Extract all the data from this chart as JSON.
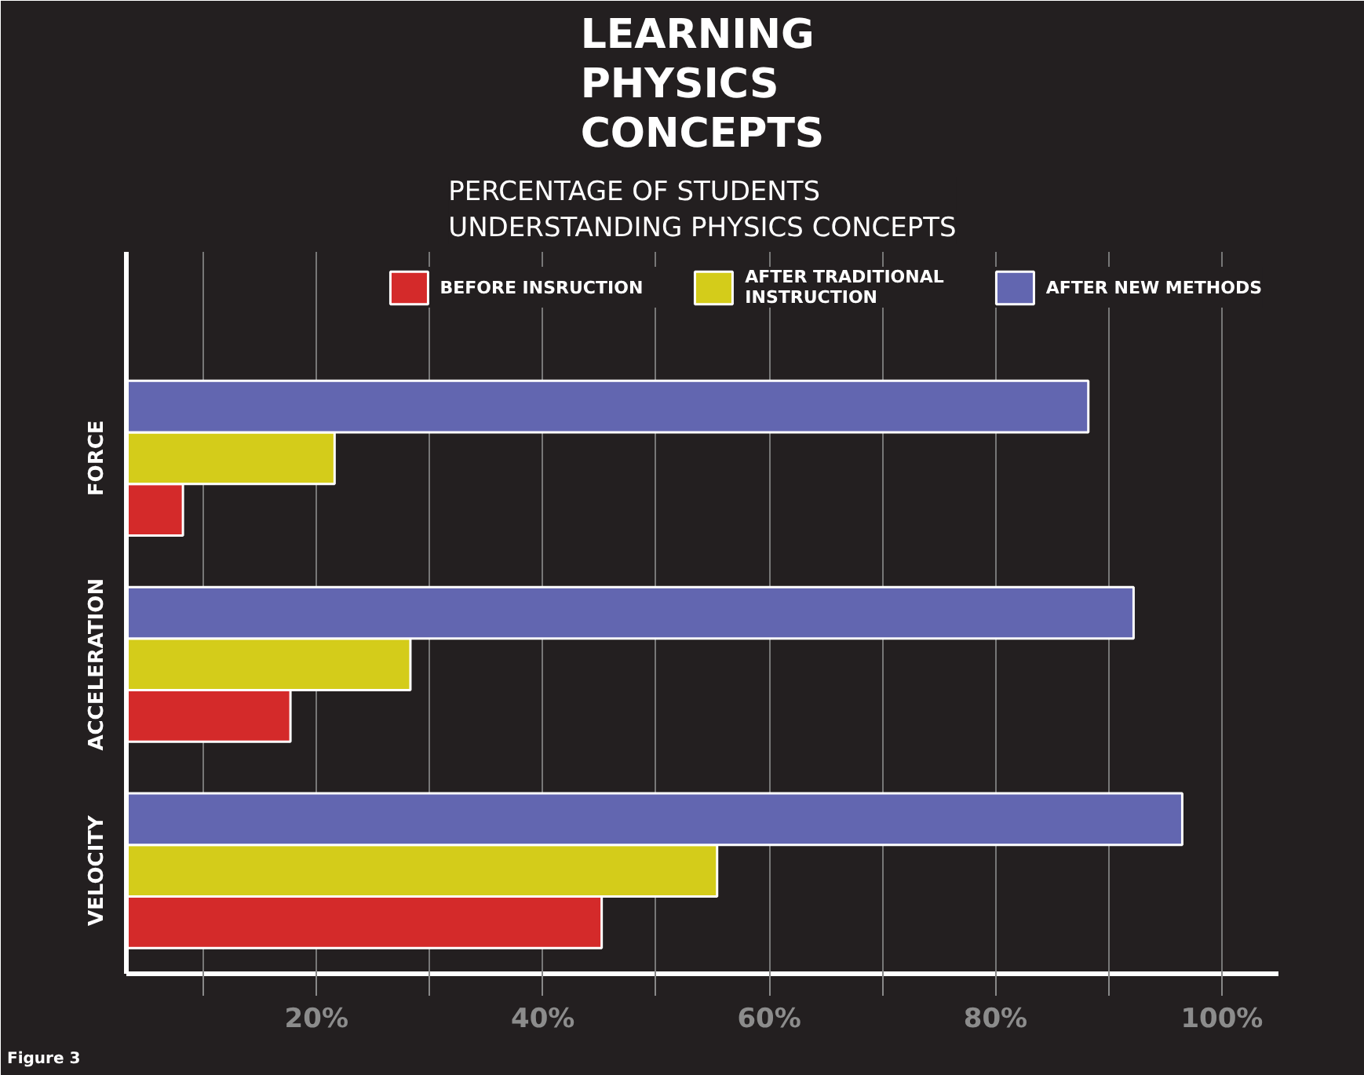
{
  "chart_data": {
    "type": "bar",
    "orientation": "horizontal",
    "title": "LEARNING PHYSICS CONCEPTS",
    "subtitle": "PERCENTAGE  OF STUDENTS UNDERSTANDING PHYSICS CONCEPTS",
    "categories": [
      "FORCE",
      "ACCELERATION",
      "VELOCITY"
    ],
    "series": [
      {
        "name": "BEFORE INSRUCTION",
        "color": "#d42a2a",
        "values": [
          8.2,
          17.7,
          45.2
        ]
      },
      {
        "name": "AFTER TRADITIONAL INSTRUCTION",
        "color": "#d4cc1a",
        "values": [
          21.6,
          28.3,
          55.4
        ]
      },
      {
        "name": "AFTER NEW METHODS",
        "color": "#6266b0",
        "values": [
          88.2,
          92.2,
          96.5
        ]
      }
    ],
    "xlim": [
      3.2,
      105
    ],
    "xticks": [
      {
        "value": 10,
        "label": null
      },
      {
        "value": 20,
        "label": "20%"
      },
      {
        "value": 30,
        "label": null
      },
      {
        "value": 40,
        "label": "40%"
      },
      {
        "value": 50,
        "label": null
      },
      {
        "value": 60,
        "label": "60%"
      },
      {
        "value": 70,
        "label": null
      },
      {
        "value": 80,
        "label": "80%"
      },
      {
        "value": 90,
        "label": null
      },
      {
        "value": 100,
        "label": "100%"
      }
    ],
    "grid": "x",
    "legend": "top",
    "annotations": [
      "Figure 3"
    ]
  }
}
